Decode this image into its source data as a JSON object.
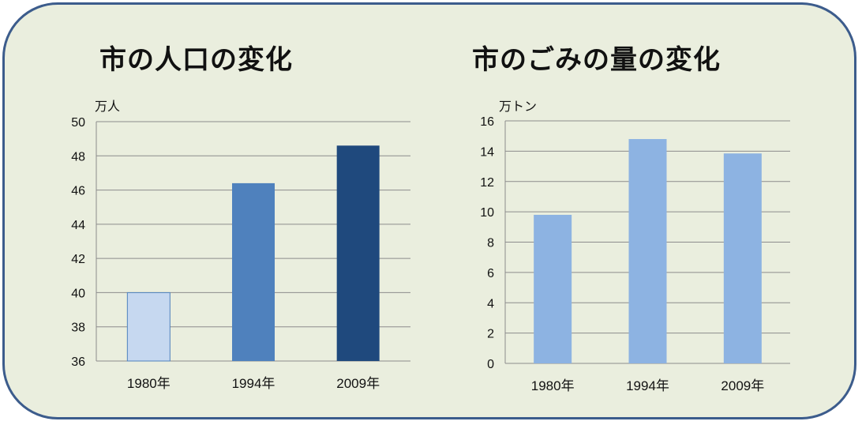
{
  "chart_data": [
    {
      "type": "bar",
      "title": "市の人口の変化",
      "ylabel": "万人",
      "categories": [
        "1980年",
        "1994年",
        "2009年"
      ],
      "values": [
        40,
        46.4,
        48.6
      ],
      "ylim": [
        36,
        50
      ],
      "yticks": [
        36,
        38,
        40,
        42,
        44,
        46,
        48,
        50
      ],
      "bar_colors": [
        "#c6d8f0",
        "#4f81bd",
        "#1f497d"
      ],
      "grid": true
    },
    {
      "type": "bar",
      "title": "市のごみの量の変化",
      "ylabel": "万トン",
      "categories": [
        "1980年",
        "1994年",
        "2009年"
      ],
      "values": [
        9.8,
        14.8,
        13.85
      ],
      "ylim": [
        0,
        16
      ],
      "yticks": [
        0,
        2,
        4,
        6,
        8,
        10,
        12,
        14,
        16
      ],
      "bar_colors": [
        "#8db3e2",
        "#8db3e2",
        "#8db3e2"
      ],
      "grid": true
    }
  ]
}
